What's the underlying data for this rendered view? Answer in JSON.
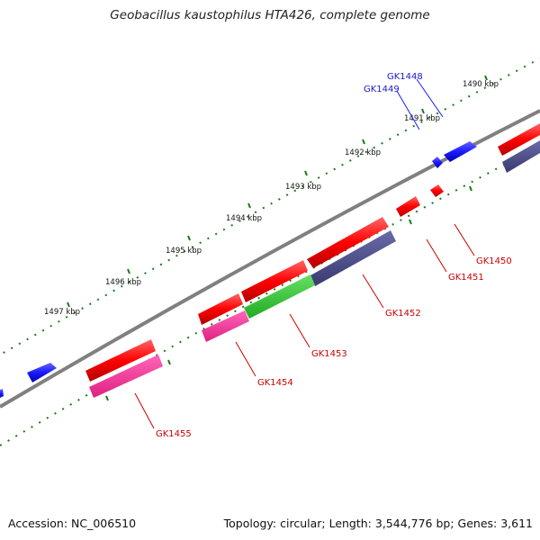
{
  "title": "Geobacillus kaustophilus HTA426, complete genome",
  "footer": {
    "accession": "Accession: NC_006510",
    "summary": "Topology: circular; Length: 3,544,776 bp; Genes: 3,611"
  },
  "ticks": [
    "1490 kbp",
    "1491 kbp",
    "1492 kbp",
    "1493 kbp",
    "1494 kbp",
    "1495 kbp",
    "1496 kbp",
    "1497 kbp"
  ],
  "genes_forward": [
    "GK1448",
    "GK1449"
  ],
  "genes_reverse": [
    "GK1450",
    "GK1451",
    "GK1452",
    "GK1453",
    "GK1454",
    "GK1455"
  ],
  "colors": {
    "forward_gene": "#1a1aff",
    "reverse_gene": "#ff0000",
    "cog_pink": "#ff3399",
    "cog_slate": "#4a4a8a",
    "cog_green": "#33cc33",
    "backbone": "#808080",
    "tick": "#1a7a1a",
    "label_blue": "#1a1acc",
    "label_red": "#cc0000"
  }
}
